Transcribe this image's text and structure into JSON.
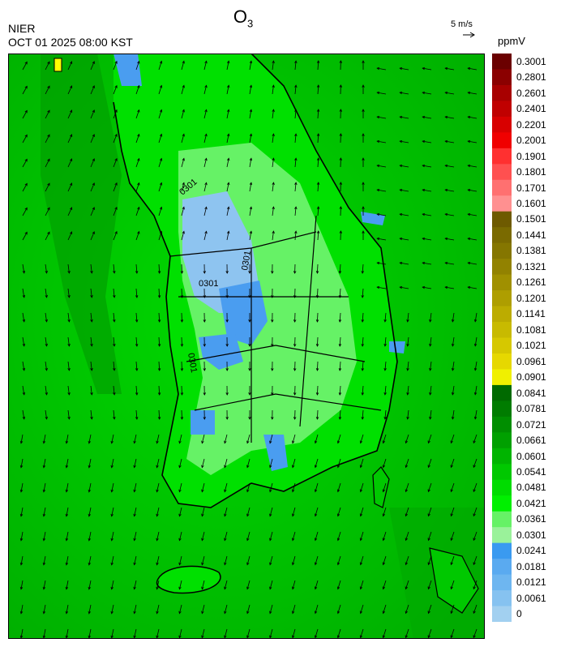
{
  "header": {
    "title": "O",
    "title_sub": "3",
    "organization": "NIER",
    "timestamp": "OCT 01 2025 08:00 KST",
    "wind_reference": "5 m/s",
    "unit": "ppmV"
  },
  "map": {
    "contour_labels": [
      "0301",
      "0301",
      "0301",
      "0301"
    ],
    "colors": {
      "sea_dark": "#00A800",
      "sea": "#00C800",
      "land_mid": "#00E000",
      "land_light": "#66F266",
      "low_o3": "#8EC4F0",
      "low_o3_dark": "#4A9DF0",
      "marker": "#FFFF00"
    }
  },
  "legend": {
    "labels": [
      "0.3001",
      "0.2801",
      "0.2601",
      "0.2401",
      "0.2201",
      "0.2001",
      "0.1901",
      "0.1801",
      "0.1701",
      "0.1601",
      "0.1501",
      "0.1441",
      "0.1381",
      "0.1321",
      "0.1261",
      "0.1201",
      "0.1141",
      "0.1081",
      "0.1021",
      "0.0961",
      "0.0901",
      "0.0841",
      "0.0781",
      "0.0721",
      "0.0661",
      "0.0601",
      "0.0541",
      "0.0481",
      "0.0421",
      "0.0361",
      "0.0301",
      "0.0241",
      "0.0181",
      "0.0121",
      "0.0061",
      "0"
    ],
    "colors": [
      "#6B0000",
      "#8B0000",
      "#A80000",
      "#C00000",
      "#D80000",
      "#F00000",
      "#FF3030",
      "#FF5050",
      "#FF7070",
      "#FF9090",
      "#6E5A00",
      "#7A6A00",
      "#857600",
      "#928200",
      "#A09000",
      "#AE9E00",
      "#BCAC00",
      "#C8BA00",
      "#D6C800",
      "#E6D800",
      "#F0F000",
      "#006A00",
      "#007C00",
      "#008E00",
      "#00A000",
      "#00B400",
      "#00C800",
      "#00DC00",
      "#00F000",
      "#66F266",
      "#9AF29A",
      "#3A9AF0",
      "#5AAAF0",
      "#6EB6F0",
      "#86C2F0",
      "#A2D0F0"
    ]
  }
}
